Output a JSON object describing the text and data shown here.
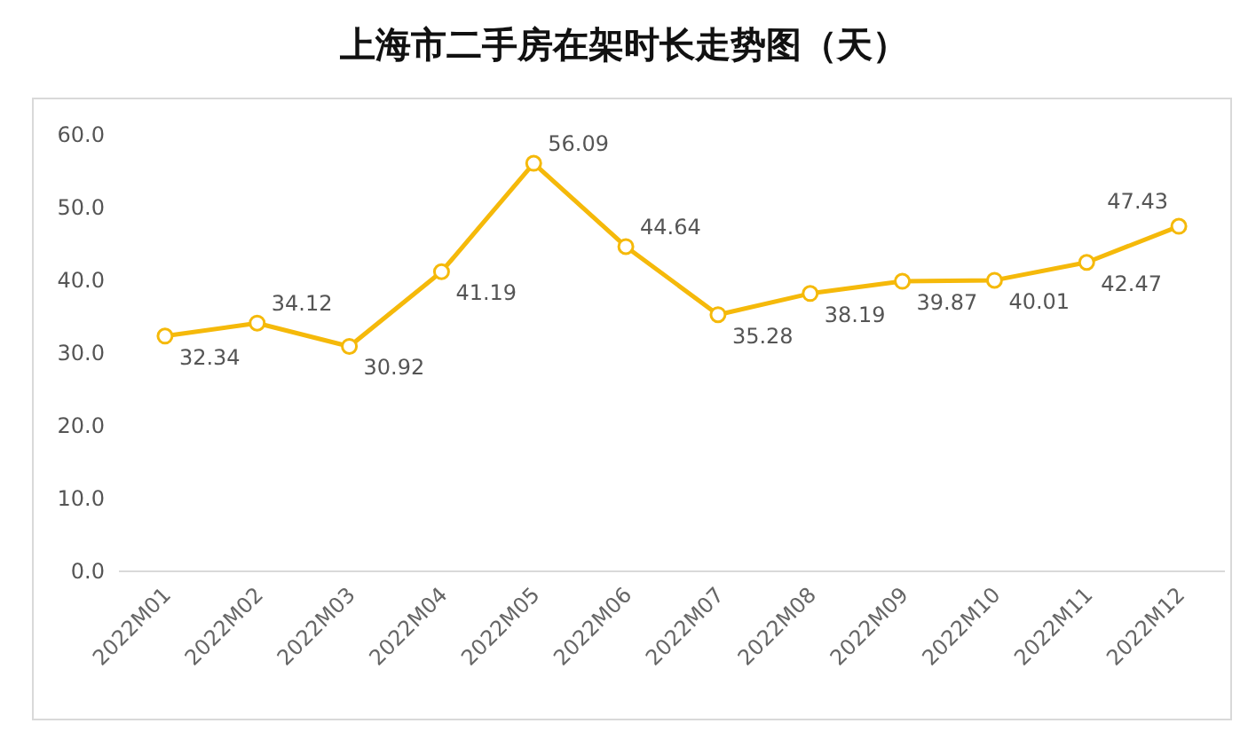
{
  "chart_data": {
    "type": "line",
    "title": "上海市二手房在架时长走势图（天）",
    "categories": [
      "2022M01",
      "2022M02",
      "2022M03",
      "2022M04",
      "2022M05",
      "2022M06",
      "2022M07",
      "2022M08",
      "2022M09",
      "2022M10",
      "2022M11",
      "2022M12"
    ],
    "values": [
      32.34,
      34.12,
      30.92,
      41.19,
      56.09,
      44.64,
      35.28,
      38.19,
      39.87,
      40.01,
      42.47,
      47.43
    ],
    "color": "#f5b90a",
    "marker": "circle",
    "data_labels": true,
    "ylim": [
      0,
      60
    ],
    "yticks": [
      {
        "value": 0,
        "label": "0.0"
      },
      {
        "value": 10,
        "label": "10.0"
      },
      {
        "value": 20,
        "label": "20.0"
      },
      {
        "value": 30,
        "label": "30.0"
      },
      {
        "value": 40,
        "label": "40.0"
      },
      {
        "value": 50,
        "label": "50.0"
      },
      {
        "value": 60,
        "label": "60.0"
      }
    ]
  }
}
